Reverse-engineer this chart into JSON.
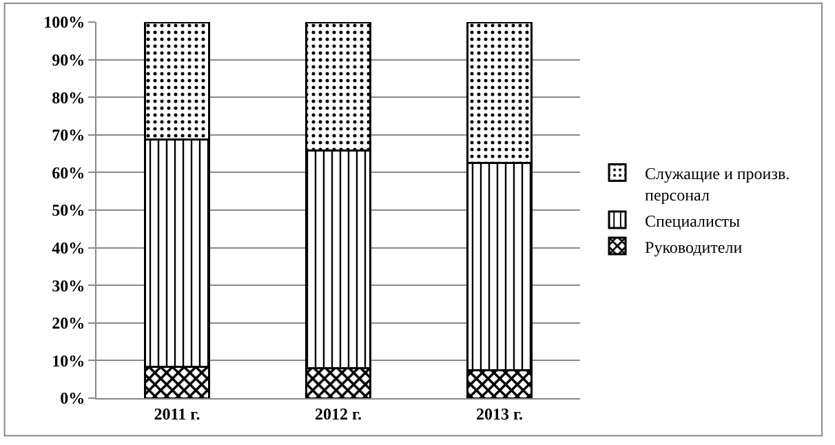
{
  "chart_data": {
    "type": "bar",
    "stacked": true,
    "categories": [
      "2011 г.",
      "2012 г.",
      "2013 г."
    ],
    "series": [
      {
        "name": "Руководители",
        "color": "#000000",
        "values": [
          8.4,
          8.0,
          7.4
        ]
      },
      {
        "name": "Специалисты",
        "color": "#000000",
        "values": [
          60.3,
          57.9,
          55.1
        ]
      },
      {
        "name": "Служащие и произв. персонал",
        "color": "#000000",
        "values": [
          31.3,
          34.1,
          37.5
        ]
      }
    ],
    "ylim": [
      0,
      100
    ],
    "yticks": [
      {
        "value": 0,
        "label": "0%"
      },
      {
        "value": 10,
        "label": "10%"
      },
      {
        "value": 20,
        "label": "20%"
      },
      {
        "value": 30,
        "label": "30%"
      },
      {
        "value": 40,
        "label": "40%"
      },
      {
        "value": 50,
        "label": "50%"
      },
      {
        "value": 60,
        "label": "60%"
      },
      {
        "value": 70,
        "label": "70%"
      },
      {
        "value": 80,
        "label": "80%"
      },
      {
        "value": 90,
        "label": "90%"
      },
      {
        "value": 100,
        "label": "100%"
      }
    ],
    "grid": "y",
    "legend": "right"
  }
}
